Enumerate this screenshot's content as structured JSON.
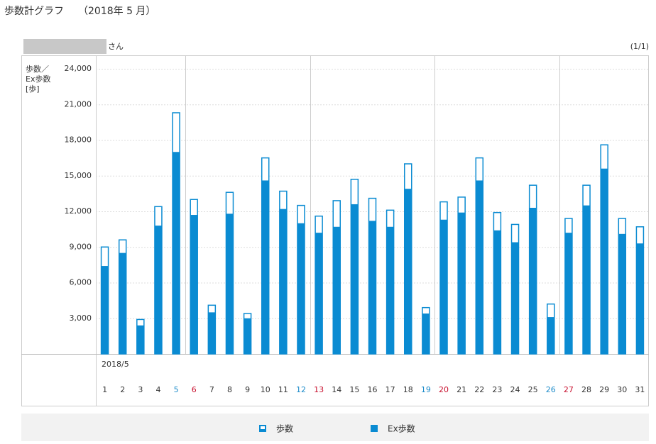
{
  "header": {
    "title": "歩数計グラフ",
    "period": "（2018年 5 月）"
  },
  "user_suffix": "さん",
  "page_indicator": "(1/1)",
  "chart_data": {
    "type": "bar",
    "y_label_lines": [
      "歩数／",
      "Ex歩数",
      "[歩]"
    ],
    "x_period": "2018/5",
    "categories": [
      "1",
      "2",
      "3",
      "4",
      "5",
      "6",
      "7",
      "8",
      "9",
      "10",
      "11",
      "12",
      "13",
      "14",
      "15",
      "16",
      "17",
      "18",
      "19",
      "20",
      "21",
      "22",
      "23",
      "24",
      "25",
      "26",
      "27",
      "28",
      "29",
      "30",
      "31"
    ],
    "category_colors": [
      "#333",
      "#333",
      "#333",
      "#333",
      "#1a8ac9",
      "#c8102e",
      "#333",
      "#333",
      "#333",
      "#333",
      "#333",
      "#1a8ac9",
      "#c8102e",
      "#333",
      "#333",
      "#333",
      "#333",
      "#333",
      "#1a8ac9",
      "#c8102e",
      "#333",
      "#333",
      "#333",
      "#333",
      "#333",
      "#1a8ac9",
      "#c8102e",
      "#333",
      "#333",
      "#333",
      "#333"
    ],
    "series": [
      {
        "name": "歩数",
        "color": "#0a8bd2",
        "style": "outline",
        "values": [
          9000,
          9600,
          2900,
          12400,
          20300,
          13000,
          4100,
          13600,
          3400,
          16500,
          13700,
          12500,
          11600,
          12900,
          14700,
          13100,
          12100,
          16000,
          3900,
          12800,
          13200,
          16500,
          11900,
          10900,
          14200,
          4200,
          11400,
          14200,
          17600,
          11400,
          10700
        ]
      },
      {
        "name": "Ex歩数",
        "color": "#0a8bd2",
        "style": "filled",
        "values": [
          7400,
          8500,
          2400,
          10800,
          17000,
          11700,
          3500,
          11800,
          3000,
          14600,
          12200,
          11000,
          10200,
          10700,
          12600,
          11200,
          10700,
          13900,
          3400,
          11300,
          11900,
          14600,
          10400,
          9400,
          12300,
          3100,
          10200,
          12500,
          15600,
          10100,
          9300
        ]
      }
    ],
    "ylim": [
      0,
      24000
    ],
    "yticks": [
      {
        "value": 3000,
        "label": "3,000"
      },
      {
        "value": 6000,
        "label": "6,000"
      },
      {
        "value": 9000,
        "label": "9,000"
      },
      {
        "value": 12000,
        "label": "12,000"
      },
      {
        "value": 15000,
        "label": "15,000"
      },
      {
        "value": 18000,
        "label": "18,000"
      },
      {
        "value": 21000,
        "label": "21,000"
      },
      {
        "value": 24000,
        "label": "24,000"
      }
    ],
    "grid": true
  }
}
